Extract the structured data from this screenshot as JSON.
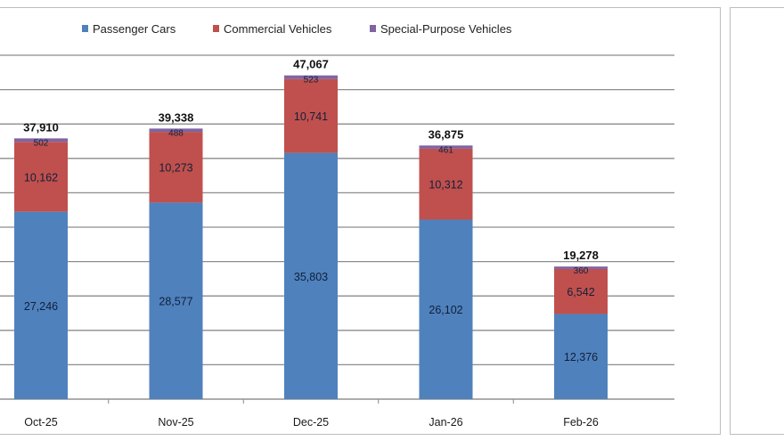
{
  "chart_data": {
    "type": "bar",
    "stacked": true,
    "categories": [
      "Oct-25",
      "Nov-25",
      "Dec-25",
      "Jan-26",
      "Feb-26"
    ],
    "series": [
      {
        "name": "Passenger Cars",
        "color": "#4f81bd",
        "values": [
          27246,
          28577,
          35803,
          26102,
          12376
        ],
        "labels": [
          "27,246",
          "28,577",
          "35,803",
          "26,102",
          "12,376"
        ]
      },
      {
        "name": "Commercial Vehicles",
        "color": "#c0504d",
        "values": [
          10162,
          10273,
          10741,
          10312,
          6542
        ],
        "labels": [
          "10,162",
          "10,273",
          "10,741",
          "10,312",
          "6,542"
        ]
      },
      {
        "name": "Special-Purpose Vehicles",
        "color": "#8064a2",
        "values": [
          502,
          488,
          523,
          461,
          360
        ],
        "labels": [
          "502",
          "488",
          "523",
          "461",
          "360"
        ]
      }
    ],
    "totals": [
      37910,
      39338,
      47067,
      36875,
      19278
    ],
    "total_labels": [
      "37,910",
      "39,338",
      "47,067",
      "36,875",
      "19,278"
    ],
    "ylim": [
      0,
      50000
    ],
    "grid": true,
    "legend_position": "top"
  }
}
